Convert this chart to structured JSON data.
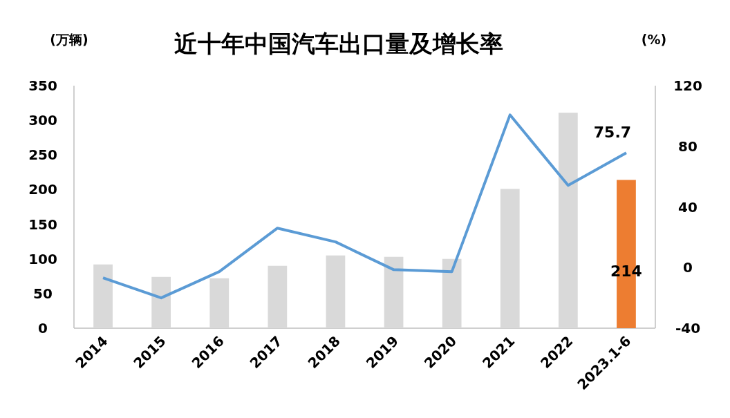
{
  "chart_data": {
    "type": "bar",
    "title": "近十年中国汽车出口量及增长率",
    "ylabel": "(万辆)",
    "y2label": "(%)",
    "categories": [
      "2014",
      "2015",
      "2016",
      "2017",
      "2018",
      "2019",
      "2020",
      "2021",
      "2022",
      "2023.1-6"
    ],
    "series": [
      {
        "colors": [
          "#d9d9d9",
          "#d9d9d9",
          "#d9d9d9",
          "#d9d9d9",
          "#d9d9d9",
          "#d9d9d9",
          "#d9d9d9",
          "#d9d9d9",
          "#d9d9d9",
          "#ed7d31"
        ],
        "values": [
          92,
          74,
          72,
          90,
          105,
          103,
          100,
          201,
          311,
          214
        ],
        "value_labels": [
          null,
          null,
          null,
          null,
          null,
          null,
          null,
          null,
          null,
          "214"
        ]
      },
      {
        "type": "line",
        "axis": "y2",
        "color": "#5b9bd5",
        "values": [
          -6.8,
          -20,
          -2.7,
          26,
          16.9,
          -1.4,
          -2.7,
          100.7,
          54.2,
          75.7
        ],
        "value_labels": [
          null,
          null,
          null,
          null,
          null,
          null,
          null,
          null,
          null,
          "75.7"
        ]
      }
    ],
    "ylim": [
      0,
      350
    ],
    "yticks": [
      0,
      50,
      100,
      150,
      200,
      250,
      300,
      350
    ],
    "y2lim": [
      -40,
      120
    ],
    "y2ticks": [
      -40,
      0,
      40,
      80,
      120
    ]
  }
}
